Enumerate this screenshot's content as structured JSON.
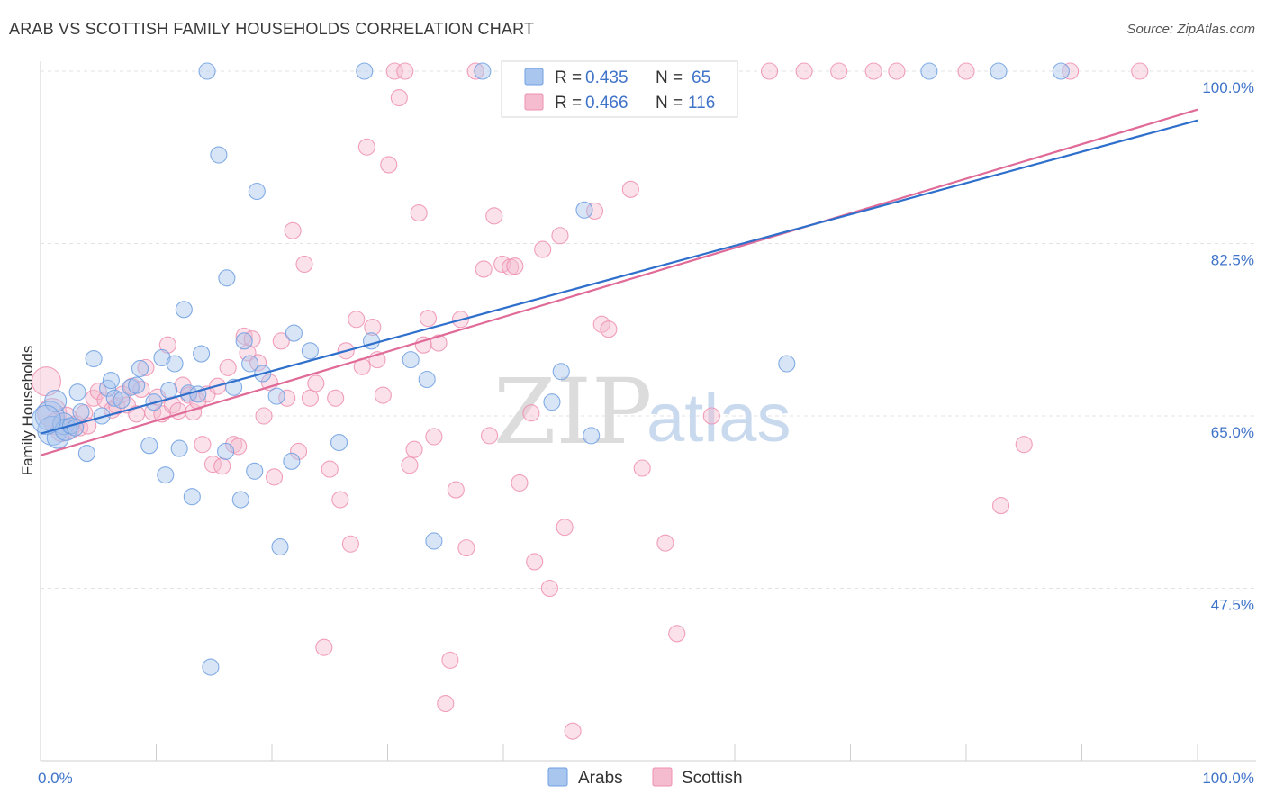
{
  "title": "ARAB VS SCOTTISH FAMILY HOUSEHOLDS CORRELATION CHART",
  "source": "Source: ZipAtlas.com",
  "watermark": {
    "zip": "ZIP",
    "atlas": "atlas"
  },
  "colors": {
    "arab": "#6f9fe0",
    "arab_fill": "#a9c6ee",
    "arab_line": "#2f6fcc",
    "scottish": "#ee8fb0",
    "scottish_fill": "#f5bcd0",
    "scottish_line": "#e06b98",
    "tick_text": "#3f73c8",
    "grid": "#e3e3e3"
  },
  "legend": {
    "rows": [
      {
        "r_label": "R = ",
        "r_value": "0.435",
        "n_label": "N = ",
        "n_value": "65"
      },
      {
        "r_label": "R = ",
        "r_value": "0.466",
        "n_label": "N = ",
        "n_value": "116"
      }
    ]
  },
  "chart_data": {
    "type": "scatter",
    "title": "ARAB VS SCOTTISH FAMILY HOUSEHOLDS CORRELATION CHART",
    "xlabel": "",
    "ylabel": "Family Households",
    "xlim": [
      0,
      100
    ],
    "ylim": [
      30,
      100
    ],
    "x_tick_labels": [
      "0.0%",
      "100.0%"
    ],
    "y_ticks": [
      47.5,
      65.0,
      82.5,
      100.0
    ],
    "y_tick_labels": [
      "47.5%",
      "65.0%",
      "82.5%",
      "100.0%"
    ],
    "grid": true,
    "legend_position": "top-center",
    "series": [
      {
        "name": "Arabs",
        "r": 0.435,
        "n": 65,
        "trend": {
          "x": [
            0,
            100
          ],
          "y": [
            63.2,
            95.0
          ]
        },
        "points": [
          [
            0.8,
            65.0
          ],
          [
            1.0,
            63.5
          ],
          [
            1.5,
            62.8
          ],
          [
            1.3,
            66.5
          ],
          [
            2.0,
            64.2
          ],
          [
            2.2,
            63.6
          ],
          [
            2.6,
            64.0
          ],
          [
            3.0,
            63.8
          ],
          [
            3.2,
            67.4
          ],
          [
            3.5,
            65.4
          ],
          [
            4.0,
            61.2
          ],
          [
            4.6,
            70.8
          ],
          [
            5.3,
            65.0
          ],
          [
            5.8,
            67.8
          ],
          [
            6.1,
            68.6
          ],
          [
            6.4,
            66.8
          ],
          [
            7.0,
            66.6
          ],
          [
            7.8,
            67.9
          ],
          [
            8.3,
            68.1
          ],
          [
            8.6,
            69.8
          ],
          [
            9.4,
            62.0
          ],
          [
            9.8,
            66.4
          ],
          [
            10.5,
            70.9
          ],
          [
            10.8,
            59.0
          ],
          [
            11.1,
            67.6
          ],
          [
            11.6,
            70.3
          ],
          [
            12.0,
            61.7
          ],
          [
            12.4,
            75.8
          ],
          [
            12.8,
            67.3
          ],
          [
            13.1,
            56.8
          ],
          [
            13.6,
            67.2
          ],
          [
            13.9,
            71.3
          ],
          [
            14.4,
            100
          ],
          [
            14.7,
            39.5
          ],
          [
            15.4,
            91.5
          ],
          [
            16.0,
            61.4
          ],
          [
            16.1,
            79.0
          ],
          [
            16.7,
            67.9
          ],
          [
            17.3,
            56.5
          ],
          [
            17.6,
            72.6
          ],
          [
            18.1,
            70.3
          ],
          [
            18.5,
            59.4
          ],
          [
            18.7,
            87.8
          ],
          [
            19.2,
            69.3
          ],
          [
            20.4,
            67.0
          ],
          [
            20.7,
            51.7
          ],
          [
            21.7,
            60.4
          ],
          [
            21.9,
            73.4
          ],
          [
            23.3,
            71.6
          ],
          [
            25.8,
            62.3
          ],
          [
            28.0,
            100
          ],
          [
            28.6,
            72.6
          ],
          [
            32.0,
            70.7
          ],
          [
            33.4,
            68.7
          ],
          [
            34.0,
            52.3
          ],
          [
            38.2,
            100
          ],
          [
            44.2,
            66.4
          ],
          [
            45.0,
            69.5
          ],
          [
            47.0,
            85.9
          ],
          [
            47.6,
            63.0
          ],
          [
            64.5,
            70.3
          ],
          [
            76.8,
            100
          ],
          [
            82.8,
            100
          ],
          [
            88.2,
            100
          ],
          [
            0.5,
            64.6
          ]
        ]
      },
      {
        "name": "Scottish",
        "r": 0.466,
        "n": 116,
        "trend": {
          "x": [
            0,
            100
          ],
          "y": [
            61.0,
            96.1
          ]
        },
        "points": [
          [
            0.5,
            68.5
          ],
          [
            1.0,
            65.3
          ],
          [
            1.3,
            64.2
          ],
          [
            1.8,
            63.5
          ],
          [
            2.2,
            64.8
          ],
          [
            2.6,
            63.5
          ],
          [
            3.1,
            64.2
          ],
          [
            3.4,
            63.8
          ],
          [
            3.8,
            65.3
          ],
          [
            4.1,
            64.0
          ],
          [
            4.6,
            66.8
          ],
          [
            5.0,
            67.5
          ],
          [
            5.6,
            66.6
          ],
          [
            6.2,
            65.6
          ],
          [
            6.6,
            66.0
          ],
          [
            7.1,
            67.2
          ],
          [
            7.5,
            66.1
          ],
          [
            7.9,
            68.0
          ],
          [
            8.3,
            65.2
          ],
          [
            8.7,
            67.7
          ],
          [
            9.1,
            69.9
          ],
          [
            9.7,
            65.4
          ],
          [
            10.1,
            66.9
          ],
          [
            10.5,
            65.2
          ],
          [
            11.0,
            72.2
          ],
          [
            11.4,
            66.1
          ],
          [
            11.9,
            65.5
          ],
          [
            12.3,
            68.1
          ],
          [
            12.8,
            67.1
          ],
          [
            13.2,
            65.4
          ],
          [
            13.6,
            66.5
          ],
          [
            14.0,
            62.1
          ],
          [
            14.4,
            67.2
          ],
          [
            14.9,
            60.1
          ],
          [
            15.3,
            68.0
          ],
          [
            15.7,
            59.9
          ],
          [
            16.2,
            69.9
          ],
          [
            16.7,
            62.1
          ],
          [
            17.1,
            61.9
          ],
          [
            17.6,
            73.1
          ],
          [
            17.9,
            71.4
          ],
          [
            18.3,
            72.8
          ],
          [
            18.8,
            70.4
          ],
          [
            19.3,
            65.0
          ],
          [
            19.8,
            68.4
          ],
          [
            20.2,
            58.8
          ],
          [
            20.8,
            72.6
          ],
          [
            21.3,
            66.8
          ],
          [
            21.8,
            83.8
          ],
          [
            22.3,
            61.4
          ],
          [
            22.8,
            80.4
          ],
          [
            23.3,
            66.8
          ],
          [
            23.8,
            68.3
          ],
          [
            24.5,
            41.5
          ],
          [
            25.0,
            59.6
          ],
          [
            25.5,
            66.8
          ],
          [
            25.9,
            56.5
          ],
          [
            26.4,
            71.6
          ],
          [
            26.8,
            52.0
          ],
          [
            27.3,
            74.8
          ],
          [
            27.8,
            70.0
          ],
          [
            28.2,
            92.3
          ],
          [
            28.7,
            74.0
          ],
          [
            29.1,
            70.7
          ],
          [
            29.6,
            67.1
          ],
          [
            30.1,
            90.5
          ],
          [
            30.6,
            100
          ],
          [
            31.0,
            97.3
          ],
          [
            31.5,
            100
          ],
          [
            31.9,
            60.0
          ],
          [
            32.3,
            61.6
          ],
          [
            32.7,
            85.6
          ],
          [
            33.1,
            72.2
          ],
          [
            33.5,
            74.9
          ],
          [
            34.0,
            62.9
          ],
          [
            34.4,
            72.4
          ],
          [
            35.0,
            35.8
          ],
          [
            35.4,
            40.2
          ],
          [
            35.9,
            57.5
          ],
          [
            36.3,
            74.8
          ],
          [
            36.8,
            51.6
          ],
          [
            37.6,
            100
          ],
          [
            38.3,
            79.9
          ],
          [
            38.8,
            63.0
          ],
          [
            39.2,
            85.3
          ],
          [
            39.9,
            80.4
          ],
          [
            40.6,
            80.1
          ],
          [
            41.0,
            80.2
          ],
          [
            41.4,
            58.2
          ],
          [
            41.9,
            100
          ],
          [
            42.4,
            65.3
          ],
          [
            42.7,
            50.2
          ],
          [
            43.4,
            81.9
          ],
          [
            44.0,
            47.5
          ],
          [
            44.9,
            83.3
          ],
          [
            45.3,
            53.7
          ],
          [
            46.0,
            33.0
          ],
          [
            47.2,
            97.0
          ],
          [
            47.9,
            85.8
          ],
          [
            48.5,
            74.3
          ],
          [
            49.1,
            73.8
          ],
          [
            50.0,
            100
          ],
          [
            51.0,
            88.0
          ],
          [
            52.0,
            59.7
          ],
          [
            53.0,
            100
          ],
          [
            54.0,
            52.1
          ],
          [
            55.0,
            42.9
          ],
          [
            58.0,
            65.0
          ],
          [
            63.0,
            100
          ],
          [
            66.0,
            100
          ],
          [
            69.0,
            100
          ],
          [
            72.0,
            100
          ],
          [
            74.0,
            100
          ],
          [
            80.0,
            100
          ],
          [
            83.0,
            55.9
          ],
          [
            85.0,
            62.1
          ],
          [
            89.0,
            100
          ],
          [
            95.0,
            100
          ]
        ]
      }
    ]
  }
}
